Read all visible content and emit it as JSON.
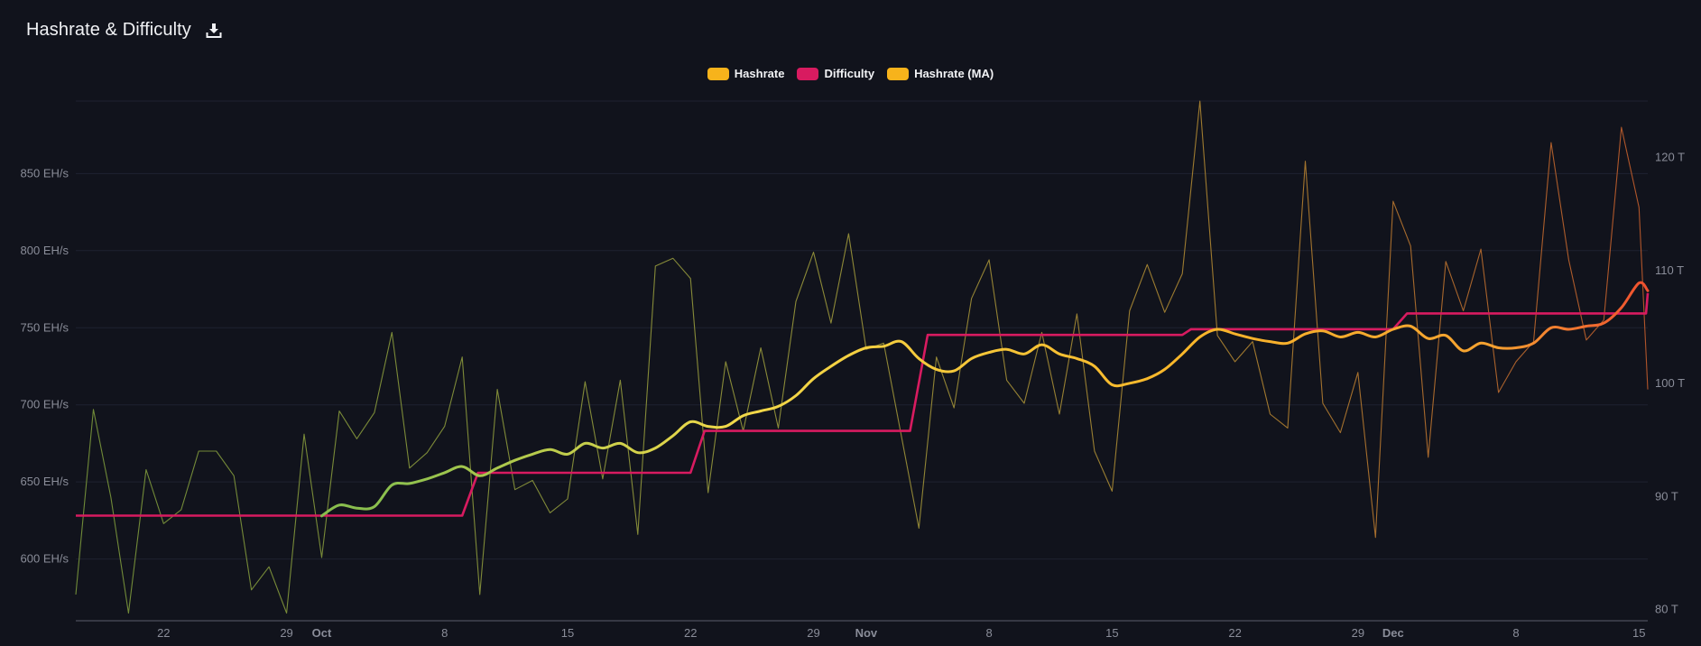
{
  "header": {
    "title": "Hashrate & Difficulty",
    "download_icon": "download-icon"
  },
  "legend": [
    {
      "label": "Hashrate",
      "color": "#f7b31b"
    },
    {
      "label": "Difficulty",
      "color": "#d81b60"
    },
    {
      "label": "Hashrate (MA)",
      "color": "#f7b31b"
    }
  ],
  "chart_data": {
    "type": "line",
    "title": "Hashrate & Difficulty",
    "left_axis": {
      "ticks": [
        600,
        650,
        700,
        750,
        800,
        850
      ],
      "tick_labels": [
        "600 EH/s",
        "650 EH/s",
        "700 EH/s",
        "750 EH/s",
        "800 EH/s",
        "850 EH/s"
      ],
      "range": [
        560,
        897
      ]
    },
    "right_axis": {
      "ticks": [
        80,
        90,
        100,
        110,
        120
      ],
      "tick_labels": [
        "80 T",
        "90 T",
        "100 T",
        "110 T",
        "120 T"
      ],
      "range": [
        79,
        125
      ]
    },
    "x_axis": {
      "range": [
        0,
        89.5
      ],
      "ticks": [
        {
          "pos": 5,
          "label": "22",
          "bold": false
        },
        {
          "pos": 12,
          "label": "29",
          "bold": false
        },
        {
          "pos": 14,
          "label": "Oct",
          "bold": true
        },
        {
          "pos": 21,
          "label": "8",
          "bold": false
        },
        {
          "pos": 28,
          "label": "15",
          "bold": false
        },
        {
          "pos": 35,
          "label": "22",
          "bold": false
        },
        {
          "pos": 42,
          "label": "29",
          "bold": false
        },
        {
          "pos": 45,
          "label": "Nov",
          "bold": true
        },
        {
          "pos": 52,
          "label": "8",
          "bold": false
        },
        {
          "pos": 59,
          "label": "15",
          "bold": false
        },
        {
          "pos": 66,
          "label": "22",
          "bold": false
        },
        {
          "pos": 73,
          "label": "29",
          "bold": false
        },
        {
          "pos": 75,
          "label": "Dec",
          "bold": true
        },
        {
          "pos": 82,
          "label": "8",
          "bold": false
        },
        {
          "pos": 89,
          "label": "15",
          "bold": false
        }
      ]
    },
    "series": [
      {
        "name": "Hashrate",
        "axis": "left",
        "points": [
          [
            0,
            577
          ],
          [
            1,
            697
          ],
          [
            2,
            640
          ],
          [
            3,
            565
          ],
          [
            4,
            658
          ],
          [
            5,
            623
          ],
          [
            6,
            632
          ],
          [
            7,
            670
          ],
          [
            8,
            670
          ],
          [
            9,
            654
          ],
          [
            10,
            580
          ],
          [
            11,
            595
          ],
          [
            12,
            565
          ],
          [
            13,
            681
          ],
          [
            14,
            601
          ],
          [
            15,
            696
          ],
          [
            16,
            678
          ],
          [
            17,
            695
          ],
          [
            18,
            747
          ],
          [
            19,
            659
          ],
          [
            20,
            669
          ],
          [
            21,
            686
          ],
          [
            22,
            731
          ],
          [
            23,
            577
          ],
          [
            24,
            710
          ],
          [
            25,
            645
          ],
          [
            26,
            651
          ],
          [
            27,
            630
          ],
          [
            28,
            639
          ],
          [
            29,
            715
          ],
          [
            30,
            652
          ],
          [
            31,
            716
          ],
          [
            32,
            616
          ],
          [
            33,
            790
          ],
          [
            34,
            795
          ],
          [
            35,
            782
          ],
          [
            36,
            643
          ],
          [
            37,
            728
          ],
          [
            38,
            683
          ],
          [
            39,
            737
          ],
          [
            40,
            685
          ],
          [
            41,
            767
          ],
          [
            42,
            799
          ],
          [
            43,
            753
          ],
          [
            44,
            811
          ],
          [
            45,
            736
          ],
          [
            46,
            740
          ],
          [
            47,
            680
          ],
          [
            48,
            620
          ],
          [
            49,
            731
          ],
          [
            50,
            698
          ],
          [
            51,
            769
          ],
          [
            52,
            794
          ],
          [
            53,
            716
          ],
          [
            54,
            701
          ],
          [
            55,
            747
          ],
          [
            56,
            694
          ],
          [
            57,
            759
          ],
          [
            58,
            670
          ],
          [
            59,
            644
          ],
          [
            60,
            761
          ],
          [
            61,
            791
          ],
          [
            62,
            760
          ],
          [
            63,
            785
          ],
          [
            64,
            897
          ],
          [
            65,
            745
          ],
          [
            66,
            728
          ],
          [
            67,
            741
          ],
          [
            68,
            694
          ],
          [
            69,
            685
          ],
          [
            70,
            858
          ],
          [
            71,
            701
          ],
          [
            72,
            682
          ],
          [
            73,
            721
          ],
          [
            74,
            614
          ],
          [
            75,
            832
          ],
          [
            76,
            803
          ],
          [
            77,
            666
          ],
          [
            78,
            793
          ],
          [
            79,
            761
          ],
          [
            80,
            801
          ],
          [
            81,
            708
          ],
          [
            82,
            728
          ],
          [
            83,
            741
          ],
          [
            84,
            870
          ],
          [
            85,
            794
          ],
          [
            86,
            742
          ],
          [
            87,
            755
          ],
          [
            88,
            880
          ],
          [
            89,
            828
          ],
          [
            89.5,
            710
          ]
        ]
      },
      {
        "name": "Difficulty",
        "axis": "right",
        "points": [
          [
            0,
            88.3
          ],
          [
            22,
            88.3
          ],
          [
            22.9,
            92.1
          ],
          [
            35,
            92.1
          ],
          [
            35.8,
            95.8
          ],
          [
            47.5,
            95.8
          ],
          [
            48.5,
            104.3
          ],
          [
            63,
            104.3
          ],
          [
            63.5,
            104.8
          ],
          [
            75,
            104.8
          ],
          [
            75.8,
            106.2
          ],
          [
            89.4,
            106.2
          ],
          [
            89.5,
            108.0
          ]
        ]
      },
      {
        "name": "Hashrate (MA)",
        "axis": "left",
        "points": [
          [
            14,
            628
          ],
          [
            15,
            635
          ],
          [
            16,
            633
          ],
          [
            17,
            634
          ],
          [
            18,
            648
          ],
          [
            19,
            649
          ],
          [
            20,
            652
          ],
          [
            21,
            656
          ],
          [
            22,
            660
          ],
          [
            23,
            654
          ],
          [
            24,
            659
          ],
          [
            25,
            664
          ],
          [
            26,
            668
          ],
          [
            27,
            671
          ],
          [
            28,
            668
          ],
          [
            29,
            675
          ],
          [
            30,
            672
          ],
          [
            31,
            675
          ],
          [
            32,
            669
          ],
          [
            33,
            672
          ],
          [
            34,
            680
          ],
          [
            35,
            689
          ],
          [
            36,
            686
          ],
          [
            37,
            686
          ],
          [
            38,
            693
          ],
          [
            39,
            696
          ],
          [
            40,
            699
          ],
          [
            41,
            706
          ],
          [
            42,
            717
          ],
          [
            43,
            725
          ],
          [
            44,
            732
          ],
          [
            45,
            737
          ],
          [
            46,
            738
          ],
          [
            47,
            741
          ],
          [
            48,
            730
          ],
          [
            49,
            723
          ],
          [
            50,
            722
          ],
          [
            51,
            730
          ],
          [
            52,
            734
          ],
          [
            53,
            736
          ],
          [
            54,
            733
          ],
          [
            55,
            739
          ],
          [
            56,
            733
          ],
          [
            57,
            730
          ],
          [
            58,
            725
          ],
          [
            59,
            713
          ],
          [
            60,
            714
          ],
          [
            61,
            717
          ],
          [
            62,
            723
          ],
          [
            63,
            733
          ],
          [
            64,
            744
          ],
          [
            65,
            749
          ],
          [
            66,
            746
          ],
          [
            67,
            743
          ],
          [
            68,
            741
          ],
          [
            69,
            740
          ],
          [
            70,
            746
          ],
          [
            71,
            748
          ],
          [
            72,
            744
          ],
          [
            73,
            747
          ],
          [
            74,
            744
          ],
          [
            75,
            749
          ],
          [
            76,
            751
          ],
          [
            77,
            743
          ],
          [
            78,
            745
          ],
          [
            79,
            735
          ],
          [
            80,
            740
          ],
          [
            81,
            737
          ],
          [
            82,
            737
          ],
          [
            83,
            740
          ],
          [
            84,
            750
          ],
          [
            85,
            749
          ],
          [
            86,
            751
          ],
          [
            87,
            753
          ],
          [
            88,
            763
          ],
          [
            89,
            779
          ],
          [
            89.5,
            774
          ]
        ]
      }
    ],
    "grid": true,
    "legend_position": "top-center"
  }
}
